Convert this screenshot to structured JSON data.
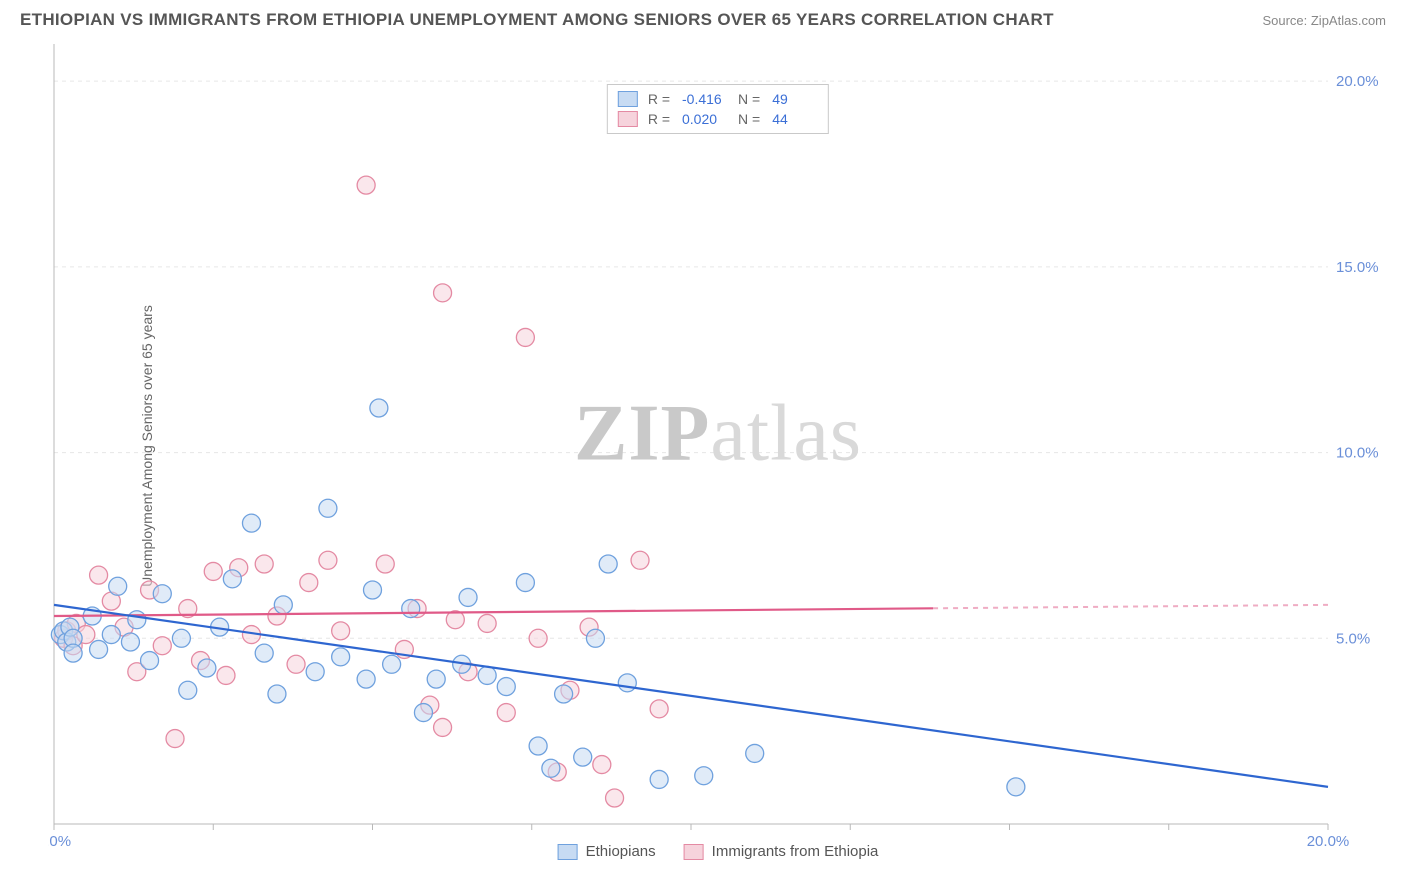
{
  "header": {
    "title": "ETHIOPIAN VS IMMIGRANTS FROM ETHIOPIA UNEMPLOYMENT AMONG SENIORS OVER 65 YEARS CORRELATION CHART",
    "source": "Source: ZipAtlas.com"
  },
  "y_axis_label": "Unemployment Among Seniors over 65 years",
  "watermark": {
    "bold": "ZIP",
    "rest": "atlas"
  },
  "chart": {
    "type": "scatter",
    "xlim": [
      0,
      20
    ],
    "ylim": [
      0,
      21
    ],
    "x_ticks": [
      0,
      2.5,
      5,
      7.5,
      10,
      12.5,
      15,
      17.5,
      20
    ],
    "x_tick_labels": {
      "0": "0.0%",
      "20": "20.0%"
    },
    "y_ticks": [
      5,
      10,
      15,
      20
    ],
    "y_tick_labels": {
      "5": "5.0%",
      "10": "10.0%",
      "15": "15.0%",
      "20": "20.0%"
    },
    "grid_color": "#e6e6e6",
    "axis_color": "#b8b8b8",
    "background": "#ffffff",
    "marker_radius": 9,
    "marker_opacity": 0.55,
    "pink_solid_extent_x": 13.8,
    "series": [
      {
        "key": "ethiopians",
        "label": "Ethiopians",
        "color_fill": "#c7dbf3",
        "color_stroke": "#6fa1de",
        "line_color": "#2e66d0",
        "R": "-0.416",
        "N": "49",
        "regression": {
          "x1": 0,
          "y1": 5.9,
          "x2": 20,
          "y2": 1.0
        },
        "points": [
          [
            0.1,
            5.1
          ],
          [
            0.15,
            5.2
          ],
          [
            0.2,
            4.9
          ],
          [
            0.25,
            5.3
          ],
          [
            0.3,
            5.0
          ],
          [
            0.3,
            4.6
          ],
          [
            0.6,
            5.6
          ],
          [
            0.7,
            4.7
          ],
          [
            0.9,
            5.1
          ],
          [
            1.0,
            6.4
          ],
          [
            1.2,
            4.9
          ],
          [
            1.3,
            5.5
          ],
          [
            1.5,
            4.4
          ],
          [
            1.7,
            6.2
          ],
          [
            2.0,
            5.0
          ],
          [
            2.1,
            3.6
          ],
          [
            2.4,
            4.2
          ],
          [
            2.6,
            5.3
          ],
          [
            2.8,
            6.6
          ],
          [
            3.1,
            8.1
          ],
          [
            3.3,
            4.6
          ],
          [
            3.5,
            3.5
          ],
          [
            3.6,
            5.9
          ],
          [
            4.1,
            4.1
          ],
          [
            4.3,
            8.5
          ],
          [
            4.5,
            4.5
          ],
          [
            4.9,
            3.9
          ],
          [
            5.0,
            6.3
          ],
          [
            5.1,
            11.2
          ],
          [
            5.3,
            4.3
          ],
          [
            5.6,
            5.8
          ],
          [
            5.8,
            3.0
          ],
          [
            6.0,
            3.9
          ],
          [
            6.4,
            4.3
          ],
          [
            6.5,
            6.1
          ],
          [
            6.8,
            4.0
          ],
          [
            7.1,
            3.7
          ],
          [
            7.4,
            6.5
          ],
          [
            7.6,
            2.1
          ],
          [
            7.8,
            1.5
          ],
          [
            8.0,
            3.5
          ],
          [
            8.5,
            5.0
          ],
          [
            8.7,
            7.0
          ],
          [
            9.0,
            3.8
          ],
          [
            9.5,
            1.2
          ],
          [
            10.2,
            1.3
          ],
          [
            11.0,
            1.9
          ],
          [
            15.1,
            1.0
          ],
          [
            8.3,
            1.8
          ]
        ]
      },
      {
        "key": "immigrants",
        "label": "Immigrants from Ethiopia",
        "color_fill": "#f6d3dc",
        "color_stroke": "#e48aa3",
        "line_color": "#e05a88",
        "R": "0.020",
        "N": "44",
        "regression": {
          "x1": 0,
          "y1": 5.6,
          "x2": 20,
          "y2": 5.9
        },
        "points": [
          [
            0.15,
            5.0
          ],
          [
            0.2,
            5.2
          ],
          [
            0.3,
            4.8
          ],
          [
            0.35,
            5.4
          ],
          [
            0.5,
            5.1
          ],
          [
            0.7,
            6.7
          ],
          [
            0.9,
            6.0
          ],
          [
            1.1,
            5.3
          ],
          [
            1.3,
            4.1
          ],
          [
            1.5,
            6.3
          ],
          [
            1.7,
            4.8
          ],
          [
            1.9,
            2.3
          ],
          [
            2.1,
            5.8
          ],
          [
            2.3,
            4.4
          ],
          [
            2.5,
            6.8
          ],
          [
            2.7,
            4.0
          ],
          [
            2.9,
            6.9
          ],
          [
            3.1,
            5.1
          ],
          [
            3.3,
            7.0
          ],
          [
            3.5,
            5.6
          ],
          [
            3.8,
            4.3
          ],
          [
            4.0,
            6.5
          ],
          [
            4.3,
            7.1
          ],
          [
            4.5,
            5.2
          ],
          [
            4.9,
            17.2
          ],
          [
            5.2,
            7.0
          ],
          [
            5.5,
            4.7
          ],
          [
            5.7,
            5.8
          ],
          [
            5.9,
            3.2
          ],
          [
            6.1,
            14.3
          ],
          [
            6.3,
            5.5
          ],
          [
            6.5,
            4.1
          ],
          [
            6.1,
            2.6
          ],
          [
            6.8,
            5.4
          ],
          [
            7.1,
            3.0
          ],
          [
            7.4,
            13.1
          ],
          [
            7.6,
            5.0
          ],
          [
            7.9,
            1.4
          ],
          [
            8.1,
            3.6
          ],
          [
            8.4,
            5.3
          ],
          [
            8.8,
            0.7
          ],
          [
            9.2,
            7.1
          ],
          [
            9.5,
            3.1
          ],
          [
            8.6,
            1.6
          ]
        ]
      }
    ]
  },
  "legend_bottom": [
    {
      "label": "Ethiopians",
      "fill": "#c7dbf3",
      "stroke": "#6fa1de"
    },
    {
      "label": "Immigrants from Ethiopia",
      "fill": "#f6d3dc",
      "stroke": "#e48aa3"
    }
  ]
}
